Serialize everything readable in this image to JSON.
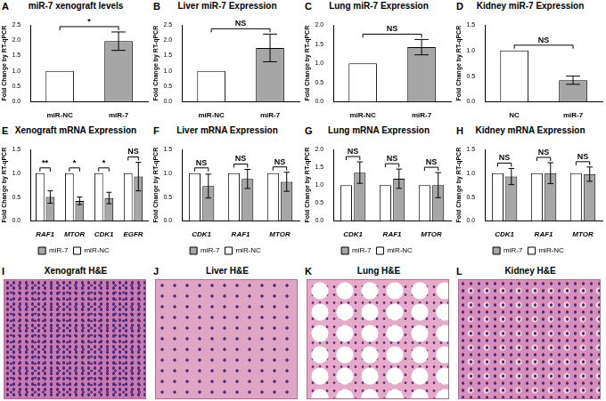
{
  "chart_data": [
    {
      "panel": "A",
      "type": "bar",
      "title": "miR-7 xenograft levels",
      "ylabel": "Fold Change by RT-qPCR",
      "categories": [
        "miR-NC",
        "miR-7"
      ],
      "values": [
        1,
        1.97
      ],
      "errors": [
        0,
        0.3
      ],
      "colors": [
        "#ffffff",
        "#a6a6a6"
      ],
      "significance": "*",
      "grid": false,
      "ylim": [
        0,
        2.5
      ],
      "yticks": [
        {
          "value": 0,
          "label": "0.0"
        },
        {
          "value": 0.5,
          "label": "0.5"
        },
        {
          "value": 1,
          "label": "1.0"
        },
        {
          "value": 1.5,
          "label": "1.5"
        },
        {
          "value": 2,
          "label": "2.0"
        },
        {
          "value": 2.5,
          "label": "2.5"
        }
      ]
    },
    {
      "panel": "B",
      "type": "bar",
      "title": "Liver miR-7 Expression",
      "ylabel": "Fold Change by RT-qPCR",
      "categories": [
        "miR-NC",
        "miR-7"
      ],
      "values": [
        1,
        1.75
      ],
      "errors": [
        0,
        0.45
      ],
      "colors": [
        "#ffffff",
        "#a6a6a6"
      ],
      "significance": "NS",
      "grid": false,
      "ylim": [
        0,
        2.5
      ],
      "yticks": [
        {
          "value": 0,
          "label": "0.0"
        },
        {
          "value": 0.5,
          "label": "0.5"
        },
        {
          "value": 1,
          "label": "1.0"
        },
        {
          "value": 1.5,
          "label": "1.5"
        },
        {
          "value": 2,
          "label": "2.0"
        },
        {
          "value": 2.5,
          "label": "2.5"
        }
      ]
    },
    {
      "panel": "C",
      "type": "bar",
      "title": "Lung miR-7 Expression",
      "ylabel": "Fold Change by RT-qPCR",
      "categories": [
        "miR-NC",
        "miR-7"
      ],
      "values": [
        1,
        1.42
      ],
      "errors": [
        0,
        0.2
      ],
      "colors": [
        "#ffffff",
        "#a6a6a6"
      ],
      "significance": "NS",
      "grid": false,
      "ylim": [
        0,
        2
      ],
      "yticks": [
        {
          "value": 0,
          "label": "0.0"
        },
        {
          "value": 0.5,
          "label": "0.5"
        },
        {
          "value": 1,
          "label": "1.0"
        },
        {
          "value": 1.5,
          "label": "1.5"
        },
        {
          "value": 2,
          "label": "2.0"
        }
      ]
    },
    {
      "panel": "D",
      "type": "bar",
      "title": "Kidney miR-7 Expression",
      "ylabel": "Fold Change by RT-qPCR",
      "categories": [
        "NC",
        "miR-7"
      ],
      "values": [
        1,
        0.42
      ],
      "errors": [
        0,
        0.08
      ],
      "colors": [
        "#ffffff",
        "#a6a6a6"
      ],
      "significance": "NS",
      "grid": false,
      "ylim": [
        0,
        1.5
      ],
      "yticks": [
        {
          "value": 0,
          "label": "0.0"
        },
        {
          "value": 0.5,
          "label": "0.5"
        },
        {
          "value": 1,
          "label": "1.0"
        },
        {
          "value": 1.5,
          "label": "1.5"
        }
      ]
    },
    {
      "panel": "E",
      "type": "bar",
      "title": "Xenograft mRNA Expression",
      "ylabel": "Fold Change by RT-qPCR",
      "categories": [
        "RAF1",
        "MTOR",
        "CDK1",
        "EGFR"
      ],
      "series": [
        {
          "name": "miR-NC",
          "color": "#ffffff",
          "values": [
            1,
            1,
            1,
            1
          ]
        },
        {
          "name": "miR-7",
          "color": "#a6a6a6",
          "values": [
            0.5,
            0.42,
            0.48,
            0.93
          ],
          "errors": [
            0.13,
            0.08,
            0.12,
            0.3
          ]
        }
      ],
      "significance": [
        "**",
        "*",
        "*",
        "NS"
      ],
      "legend": "bottom",
      "grid": false,
      "ylim": [
        0,
        1.5
      ],
      "yticks": [
        {
          "value": 0,
          "label": "0.0"
        },
        {
          "value": 0.5,
          "label": "0.5"
        },
        {
          "value": 1,
          "label": "1.0"
        },
        {
          "value": 1.5,
          "label": "1.5"
        }
      ]
    },
    {
      "panel": "F",
      "type": "bar",
      "title": "Liver mRNA Expression",
      "ylabel": "Fold Change by RT-qPCR",
      "categories": [
        "CDK1",
        "RAF1",
        "MTOR"
      ],
      "series": [
        {
          "name": "miR-NC",
          "color": "#ffffff",
          "values": [
            1,
            1,
            1
          ]
        },
        {
          "name": "miR-7",
          "color": "#a6a6a6",
          "values": [
            0.73,
            0.88,
            0.82
          ],
          "errors": [
            0.25,
            0.2,
            0.2
          ]
        }
      ],
      "significance": [
        "NS",
        "NS",
        "NS"
      ],
      "legend": "bottom",
      "grid": false,
      "ylim": [
        0,
        1.5
      ],
      "yticks": [
        {
          "value": 0,
          "label": "0.0"
        },
        {
          "value": 0.5,
          "label": "0.5"
        },
        {
          "value": 1,
          "label": "1.0"
        },
        {
          "value": 1.5,
          "label": "1.5"
        }
      ]
    },
    {
      "panel": "G",
      "type": "bar",
      "title": "Lung mRNA Expression",
      "ylabel": "Fold Change by RT-qPCR",
      "categories": [
        "CDK1",
        "RAF1",
        "MTOR"
      ],
      "series": [
        {
          "name": "miR-NC",
          "color": "#ffffff",
          "values": [
            1,
            1,
            1
          ]
        },
        {
          "name": "miR-7",
          "color": "#a6a6a6",
          "values": [
            1.35,
            1.18,
            1.0
          ],
          "errors": [
            0.3,
            0.27,
            0.35
          ]
        }
      ],
      "significance": [
        "NS",
        "NS",
        "NS"
      ],
      "legend": "bottom",
      "grid": false,
      "ylim": [
        0,
        2
      ],
      "yticks": [
        {
          "value": 0,
          "label": "0.0"
        },
        {
          "value": 0.5,
          "label": "0.5"
        },
        {
          "value": 1,
          "label": "1.0"
        },
        {
          "value": 1.5,
          "label": "1.5"
        },
        {
          "value": 2,
          "label": "2.0"
        }
      ]
    },
    {
      "panel": "H",
      "type": "bar",
      "title": "Kidney mRNA Expression",
      "ylabel": "Fold Change by RT-qPCR",
      "categories": [
        "CDK1",
        "RAF1",
        "MTOR"
      ],
      "series": [
        {
          "name": "miR-NC",
          "color": "#ffffff",
          "values": [
            1,
            1,
            1
          ]
        },
        {
          "name": "miR-7",
          "color": "#a6a6a6",
          "values": [
            0.93,
            1.0,
            0.98
          ],
          "errors": [
            0.17,
            0.22,
            0.15
          ]
        }
      ],
      "significance": [
        "NS",
        "NS",
        "NS"
      ],
      "legend": "bottom",
      "grid": false,
      "ylim": [
        0,
        1.5
      ],
      "yticks": [
        {
          "value": 0,
          "label": "0.0"
        },
        {
          "value": 0.5,
          "label": "0.5"
        },
        {
          "value": 1,
          "label": "1.0"
        },
        {
          "value": 1.5,
          "label": "1.5"
        }
      ]
    }
  ],
  "images": [
    {
      "panel": "I",
      "title": "Xenograft H&E"
    },
    {
      "panel": "J",
      "title": "Liver H&E"
    },
    {
      "panel": "K",
      "title": "Lung H&E"
    },
    {
      "panel": "L",
      "title": "Kidney H&E"
    }
  ]
}
